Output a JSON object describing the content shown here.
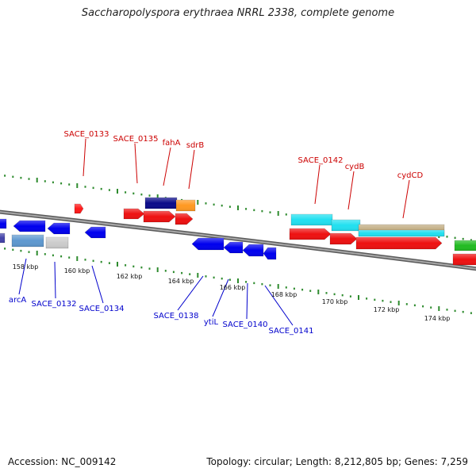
{
  "title": "Saccharopolyspora erythraea NRRL 2338, complete genome",
  "accession": "Accession: NC_009142",
  "topology": "Topology: circular; Length: 8,212,805 bp; Genes: 7,259",
  "colors": {
    "backbone": "#8c8c8c",
    "forward_label": "#cc0000",
    "reverse_label": "#0000cc",
    "tick": "#2e8b2e"
  },
  "scale_labels": [
    "158 kbp",
    "160 kbp",
    "162 kbp",
    "164 kbp",
    "166 kbp",
    "168 kbp",
    "170 kbp",
    "172 kbp",
    "174 kbp"
  ],
  "forward_gene_labels": [
    "SACE_0133",
    "SACE_0135",
    "fahA",
    "sdrB",
    "SACE_0142",
    "cydB",
    "cydCD"
  ],
  "reverse_gene_labels": [
    "arcA",
    "SACE_0132",
    "SACE_0134",
    "SACE_0138",
    "ytiL",
    "SACE_0140",
    "SACE_0141"
  ]
}
